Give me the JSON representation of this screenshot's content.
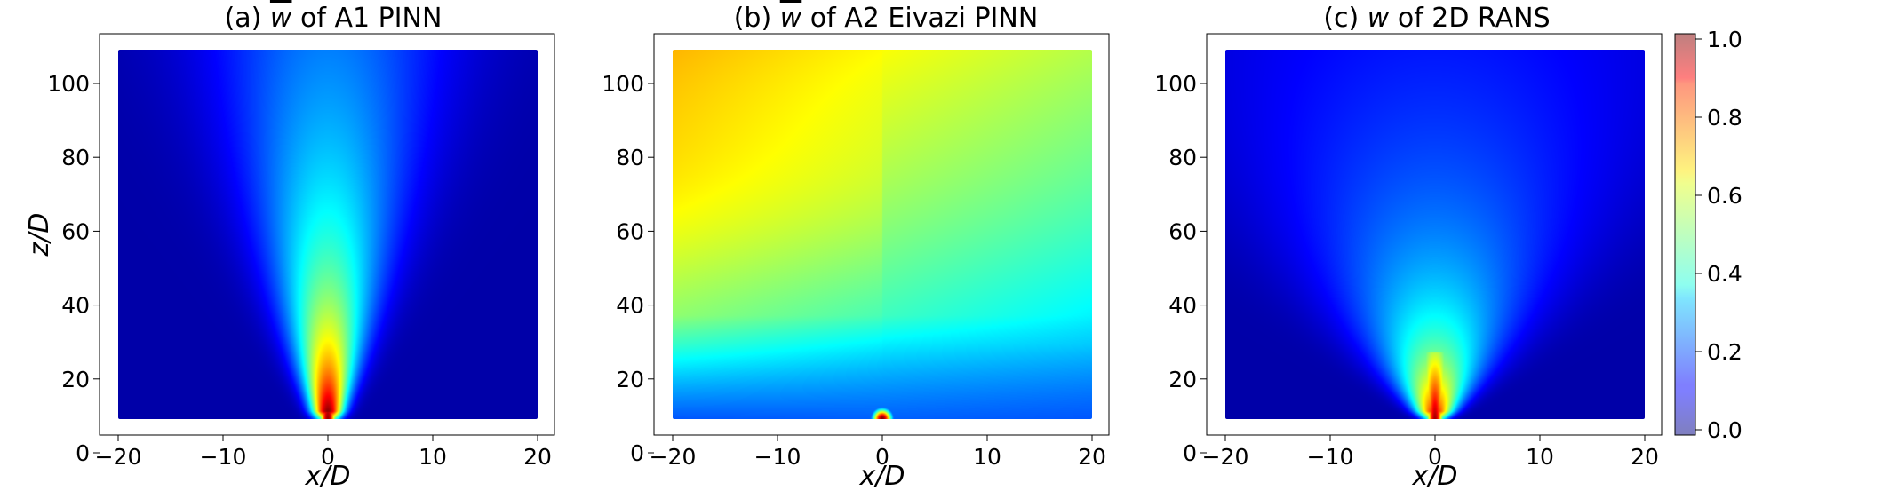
{
  "chart_data": {
    "type": "heatmap",
    "panels": [
      {
        "title_prefix": "(a) ",
        "title_var": "w",
        "title_suffix": " of A1 PINN",
        "xlabel": "x/D",
        "ylabel": "z/D",
        "xlim": [
          -20,
          20
        ],
        "ylim": [
          0,
          100
        ],
        "xticks": [
          -20,
          -10,
          0,
          10,
          20
        ],
        "yticks": [
          0,
          20,
          40,
          60,
          80,
          100
        ],
        "field": {
          "kind": "jet",
          "peak": 0.98,
          "core": 1.05,
          "spread": 0.072,
          "decay": 0.032,
          "base": 0.04
        }
      },
      {
        "title_prefix": "(b) ",
        "title_var": "w",
        "title_suffix": " of A2 Eivazi PINN",
        "xlabel": "x/D",
        "ylabel": "",
        "xlim": [
          -20,
          20
        ],
        "ylim": [
          0,
          100
        ],
        "xticks": [
          -20,
          -10,
          0,
          10,
          20
        ],
        "yticks": [
          0,
          20,
          40,
          60,
          80,
          100
        ],
        "field": {
          "kind": "diffuse",
          "peak": 1.0,
          "base": 0.44
        }
      },
      {
        "title_prefix": "(c) ",
        "title_var": "w",
        "title_suffix": " of 2D RANS",
        "xlabel": "x/D",
        "ylabel": "",
        "xlim": [
          -20,
          20
        ],
        "ylim": [
          0,
          100
        ],
        "xticks": [
          -20,
          -10,
          0,
          10,
          20
        ],
        "yticks": [
          0,
          20,
          40,
          60,
          80,
          100
        ],
        "field": {
          "kind": "jet",
          "peak": 0.97,
          "core": 0.95,
          "spread": 0.17,
          "decay": 0.055,
          "base": 0.04
        }
      }
    ],
    "colorbar": {
      "colormap": "jet",
      "range": [
        0.0,
        1.0
      ],
      "ticks": [
        "1.0",
        "0.8",
        "0.6",
        "0.4",
        "0.2",
        "0.0"
      ]
    }
  }
}
